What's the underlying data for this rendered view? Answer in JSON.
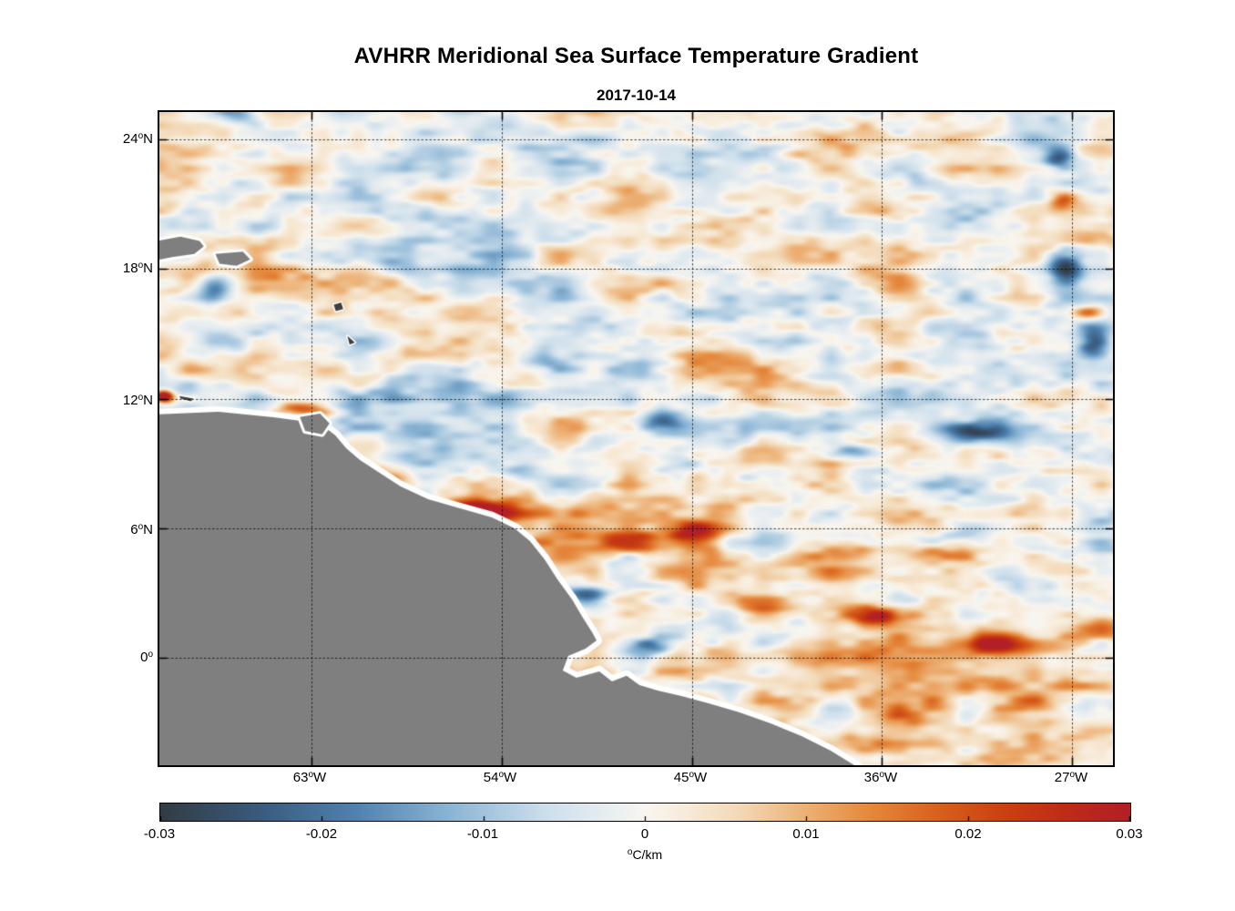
{
  "chart_data": {
    "type": "heatmap",
    "title": "AVHRR Meridional Sea Surface Temperature Gradient",
    "subtitle": "2017-10-14",
    "deg_symbol": "o",
    "lon_range": [
      -70.2,
      -25.07
    ],
    "lat_range": [
      25.27,
      -4.98
    ],
    "grid": true,
    "x_ticks": [
      {
        "value": "63",
        "suffix": "W",
        "lon": -63
      },
      {
        "value": "54",
        "suffix": "W",
        "lon": -54
      },
      {
        "value": "45",
        "suffix": "W",
        "lon": -45
      },
      {
        "value": "36",
        "suffix": "W",
        "lon": -36
      },
      {
        "value": "27",
        "suffix": "W",
        "lon": -27
      }
    ],
    "y_ticks": [
      {
        "value": "24",
        "suffix": "N",
        "lat": 24
      },
      {
        "value": "18",
        "suffix": "N",
        "lat": 18
      },
      {
        "value": "12",
        "suffix": "N",
        "lat": 12
      },
      {
        "value": "6",
        "suffix": "N",
        "lat": 6
      },
      {
        "value": "0",
        "suffix": "",
        "lat": 0
      }
    ],
    "colorbar": {
      "range": [
        -0.03,
        0.03
      ],
      "ticks": [
        "-0.03",
        "-0.02",
        "-0.01",
        "0",
        "0.01",
        "0.02",
        "0.03"
      ],
      "unit_degree": "o",
      "unit_text": "C/km"
    },
    "colormap": [
      {
        "v": -0.03,
        "color": "#333c44"
      },
      {
        "v": -0.024,
        "color": "#3a5a7d"
      },
      {
        "v": -0.018,
        "color": "#4f82ae"
      },
      {
        "v": -0.012,
        "color": "#8cb6d6"
      },
      {
        "v": -0.006,
        "color": "#cfe0ec"
      },
      {
        "v": -0.002,
        "color": "#eaeff1"
      },
      {
        "v": 0.0,
        "color": "#f8f6f0"
      },
      {
        "v": 0.002,
        "color": "#f8eedf"
      },
      {
        "v": 0.006,
        "color": "#f3d8b5"
      },
      {
        "v": 0.01,
        "color": "#edb074"
      },
      {
        "v": 0.014,
        "color": "#e5883c"
      },
      {
        "v": 0.018,
        "color": "#d8621f"
      },
      {
        "v": 0.022,
        "color": "#cb4213"
      },
      {
        "v": 0.026,
        "color": "#bf2c16"
      },
      {
        "v": 0.03,
        "color": "#b21f27"
      }
    ],
    "coast": {
      "land_color": "#7f7f7f",
      "halo_color": "#ffffff",
      "line": [
        [
          -70.3,
          11.27
        ],
        [
          -67.4,
          11.39
        ],
        [
          -64.81,
          11.14
        ],
        [
          -63.52,
          10.97
        ],
        [
          -62.44,
          10.72
        ],
        [
          -61.88,
          10.3
        ],
        [
          -61.36,
          9.7
        ],
        [
          -60.72,
          9.16
        ],
        [
          -59.98,
          8.69
        ],
        [
          -58.78,
          7.93
        ],
        [
          -57.48,
          7.34
        ],
        [
          -55.97,
          6.92
        ],
        [
          -54.46,
          6.5
        ],
        [
          -53.39,
          5.99
        ],
        [
          -52.66,
          5.4
        ],
        [
          -51.97,
          4.56
        ],
        [
          -51.36,
          3.63
        ],
        [
          -50.67,
          2.7
        ],
        [
          -50.16,
          1.86
        ],
        [
          -49.72,
          1.18
        ],
        [
          -49.51,
          0.8
        ],
        [
          -50.03,
          0.42
        ],
        [
          -50.85,
          0.08
        ],
        [
          -51.11,
          -0.59
        ],
        [
          -50.46,
          -0.93
        ],
        [
          -49.38,
          -0.63
        ],
        [
          -48.78,
          -1.1
        ],
        [
          -48.09,
          -0.84
        ],
        [
          -47.48,
          -1.27
        ],
        [
          -46.62,
          -1.52
        ],
        [
          -45.5,
          -1.77
        ],
        [
          -44.21,
          -2.11
        ],
        [
          -42.74,
          -2.53
        ],
        [
          -41.28,
          -3.04
        ],
        [
          -39.81,
          -3.63
        ],
        [
          -38.43,
          -4.3
        ],
        [
          -37.31,
          -4.98
        ],
        [
          -36.6,
          -5.6
        ]
      ],
      "close_points": [
        [
          -36.6,
          -6.5
        ],
        [
          -71.0,
          -6.5
        ],
        [
          -71.0,
          11.27
        ]
      ]
    },
    "islands": [
      {
        "color": "#7f7f7f",
        "halo": true,
        "halo_width": 6,
        "points": [
          [
            -70.35,
            19.3
          ],
          [
            -69.2,
            19.5
          ],
          [
            -68.3,
            19.3
          ],
          [
            -68.1,
            19.05
          ],
          [
            -68.55,
            18.7
          ],
          [
            -69.6,
            18.55
          ],
          [
            -70.35,
            18.4
          ]
        ]
      },
      {
        "color": "#7f7f7f",
        "halo": true,
        "halo_width": 6,
        "points": [
          [
            -67.55,
            18.7
          ],
          [
            -66.25,
            18.8
          ],
          [
            -65.9,
            18.45
          ],
          [
            -66.55,
            18.15
          ],
          [
            -67.35,
            18.25
          ]
        ]
      },
      {
        "color": "#7f7f7f",
        "halo": true,
        "halo_width": 6,
        "points": [
          [
            -63.55,
            11.15
          ],
          [
            -62.6,
            11.3
          ],
          [
            -62.15,
            10.85
          ],
          [
            -62.5,
            10.35
          ],
          [
            -63.3,
            10.5
          ]
        ]
      },
      {
        "color": "#3f3f3f",
        "halo": true,
        "halo_width": 3,
        "points": [
          [
            -61.95,
            16.35
          ],
          [
            -61.6,
            16.45
          ],
          [
            -61.5,
            16.15
          ],
          [
            -61.85,
            16.05
          ]
        ]
      },
      {
        "color": "#3f3f3f",
        "halo": true,
        "halo_width": 3,
        "points": [
          [
            -61.3,
            14.9
          ],
          [
            -60.95,
            14.6
          ],
          [
            -61.2,
            14.5
          ]
        ]
      },
      {
        "color": "#3f3f3f",
        "halo": true,
        "halo_width": 3,
        "points": [
          [
            -69.25,
            12.12
          ],
          [
            -68.6,
            12.0
          ],
          [
            -68.7,
            11.88
          ],
          [
            -69.2,
            12.0
          ]
        ]
      }
    ],
    "noise": {
      "octaves": [
        {
          "scale_deg": 3.2,
          "amp": 0.0085
        },
        {
          "scale_deg": 1.6,
          "amp": 0.006
        },
        {
          "scale_deg": 0.8,
          "amp": 0.004
        }
      ],
      "anisotropy": 2.4,
      "warm_bias": 0.0045
    },
    "features": [
      {
        "lon": -70.0,
        "lat": 12.1,
        "amp": 0.045,
        "sx": 0.45,
        "sy": 0.28
      },
      {
        "lon": -63.6,
        "lat": 11.5,
        "amp": 0.02,
        "sx": 1.1,
        "sy": 0.3
      },
      {
        "lon": -59.3,
        "lat": 8.25,
        "amp": 0.016,
        "sx": 0.7,
        "sy": 0.3
      },
      {
        "lon": -55.1,
        "lat": 6.75,
        "amp": 0.04,
        "sx": 1.6,
        "sy": 0.5
      },
      {
        "lon": -57.3,
        "lat": 6.95,
        "amp": 0.022,
        "sx": 0.7,
        "sy": 0.35
      },
      {
        "lon": -47.9,
        "lat": 5.35,
        "amp": 0.03,
        "sx": 2.0,
        "sy": 0.55
      },
      {
        "lon": -44.9,
        "lat": 5.9,
        "amp": 0.016,
        "sx": 1.4,
        "sy": 0.5
      },
      {
        "lon": -33.4,
        "lat": 4.9,
        "amp": 0.016,
        "sx": 1.6,
        "sy": 0.45
      },
      {
        "lon": -37.9,
        "lat": 4.9,
        "amp": 0.013,
        "sx": 1.8,
        "sy": 0.5
      },
      {
        "lon": -36.2,
        "lat": 1.95,
        "amp": 0.026,
        "sx": 1.5,
        "sy": 0.45
      },
      {
        "lon": -30.4,
        "lat": 0.6,
        "amp": 0.026,
        "sx": 2.0,
        "sy": 0.55
      },
      {
        "lon": -26.1,
        "lat": 16.0,
        "amp": 0.027,
        "sx": 0.9,
        "sy": 0.35
      },
      {
        "lon": -36.6,
        "lat": 20.7,
        "amp": 0.012,
        "sx": 1.6,
        "sy": 0.4
      },
      {
        "lon": -27.4,
        "lat": 21.1,
        "amp": 0.016,
        "sx": 0.6,
        "sy": 0.4
      },
      {
        "lon": -41.6,
        "lat": 2.1,
        "amp": 0.012,
        "sx": 1.2,
        "sy": 0.4
      },
      {
        "lon": -49.9,
        "lat": 2.9,
        "amp": -0.026,
        "sx": 1.1,
        "sy": 0.5
      },
      {
        "lon": -47.1,
        "lat": 0.45,
        "amp": -0.017,
        "sx": 1.0,
        "sy": 0.45
      },
      {
        "lon": -37.4,
        "lat": 9.5,
        "amp": -0.021,
        "sx": 1.4,
        "sy": 0.4
      },
      {
        "lon": -31.5,
        "lat": 10.5,
        "amp": -0.025,
        "sx": 1.7,
        "sy": 0.45
      },
      {
        "lon": -46.3,
        "lat": 11.0,
        "amp": -0.015,
        "sx": 1.1,
        "sy": 0.4
      },
      {
        "lon": -67.7,
        "lat": 17.0,
        "amp": -0.019,
        "sx": 0.8,
        "sy": 0.7
      },
      {
        "lon": -53.0,
        "lat": 8.7,
        "amp": -0.013,
        "sx": 0.9,
        "sy": 0.35
      },
      {
        "lon": -27.3,
        "lat": 18.0,
        "amp": -0.027,
        "sx": 0.8,
        "sy": 0.9
      },
      {
        "lon": -25.9,
        "lat": 14.6,
        "amp": -0.023,
        "sx": 0.7,
        "sy": 0.8
      },
      {
        "lon": -27.6,
        "lat": 23.2,
        "amp": -0.024,
        "sx": 0.7,
        "sy": 0.5
      },
      {
        "lon": -66.3,
        "lat": 25.1,
        "amp": -0.014,
        "sx": 0.9,
        "sy": 0.4
      },
      {
        "lon": -51.6,
        "lat": 13.7,
        "amp": -0.011,
        "sx": 1.2,
        "sy": 0.45
      },
      {
        "lon": -45.3,
        "lat": 8.9,
        "amp": -0.013,
        "sx": 0.9,
        "sy": 0.45
      },
      {
        "lon": -59.1,
        "lat": 7.85,
        "amp": -0.02,
        "sx": 0.3,
        "sy": 0.2
      }
    ]
  }
}
